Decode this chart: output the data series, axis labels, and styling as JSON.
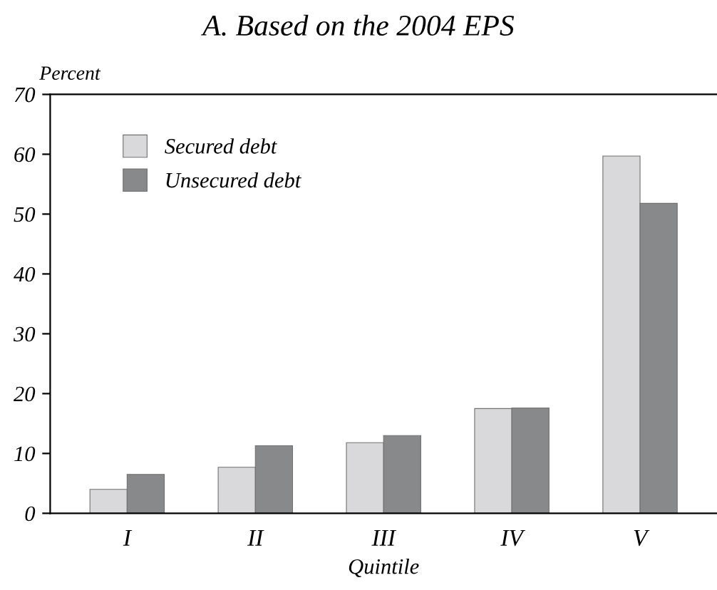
{
  "chart_data": {
    "type": "bar",
    "title": "A. Based on the 2004 EPS",
    "ylabel": "Percent",
    "xlabel": "Quintile",
    "categories": [
      "I",
      "II",
      "III",
      "IV",
      "V"
    ],
    "series": [
      {
        "name": "Secured debt",
        "color": "#d9d9db",
        "values": [
          4.0,
          7.7,
          11.8,
          17.5,
          59.7
        ]
      },
      {
        "name": "Unsecured debt",
        "color": "#88898b",
        "values": [
          6.5,
          11.3,
          13.0,
          17.6,
          51.8
        ]
      }
    ],
    "ylim": [
      0,
      70
    ],
    "yticks": [
      0,
      10,
      20,
      30,
      40,
      50,
      60,
      70
    ],
    "grid": false,
    "legend": "top left"
  }
}
